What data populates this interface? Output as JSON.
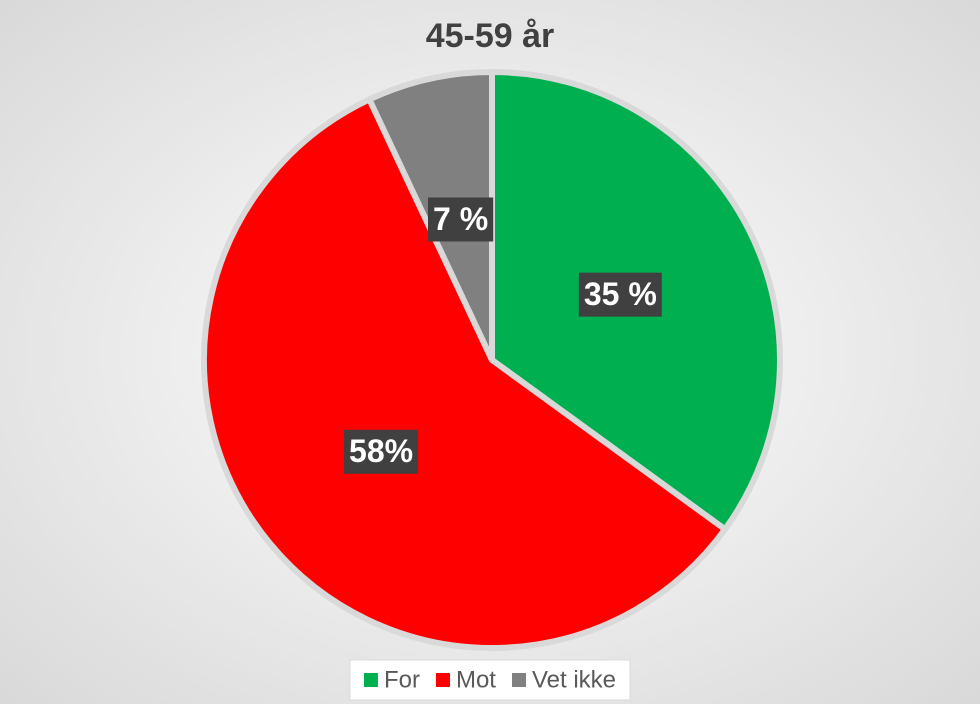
{
  "chart_data": {
    "type": "pie",
    "title": "45-59 år",
    "categories": [
      "For",
      "Mot",
      "Vet ikke"
    ],
    "values": [
      35,
      58,
      7
    ],
    "value_labels": [
      "35 %",
      "58%",
      "7 %"
    ],
    "colors": [
      "#00b050",
      "#ff0000",
      "#808080"
    ],
    "legend": "bottom"
  }
}
